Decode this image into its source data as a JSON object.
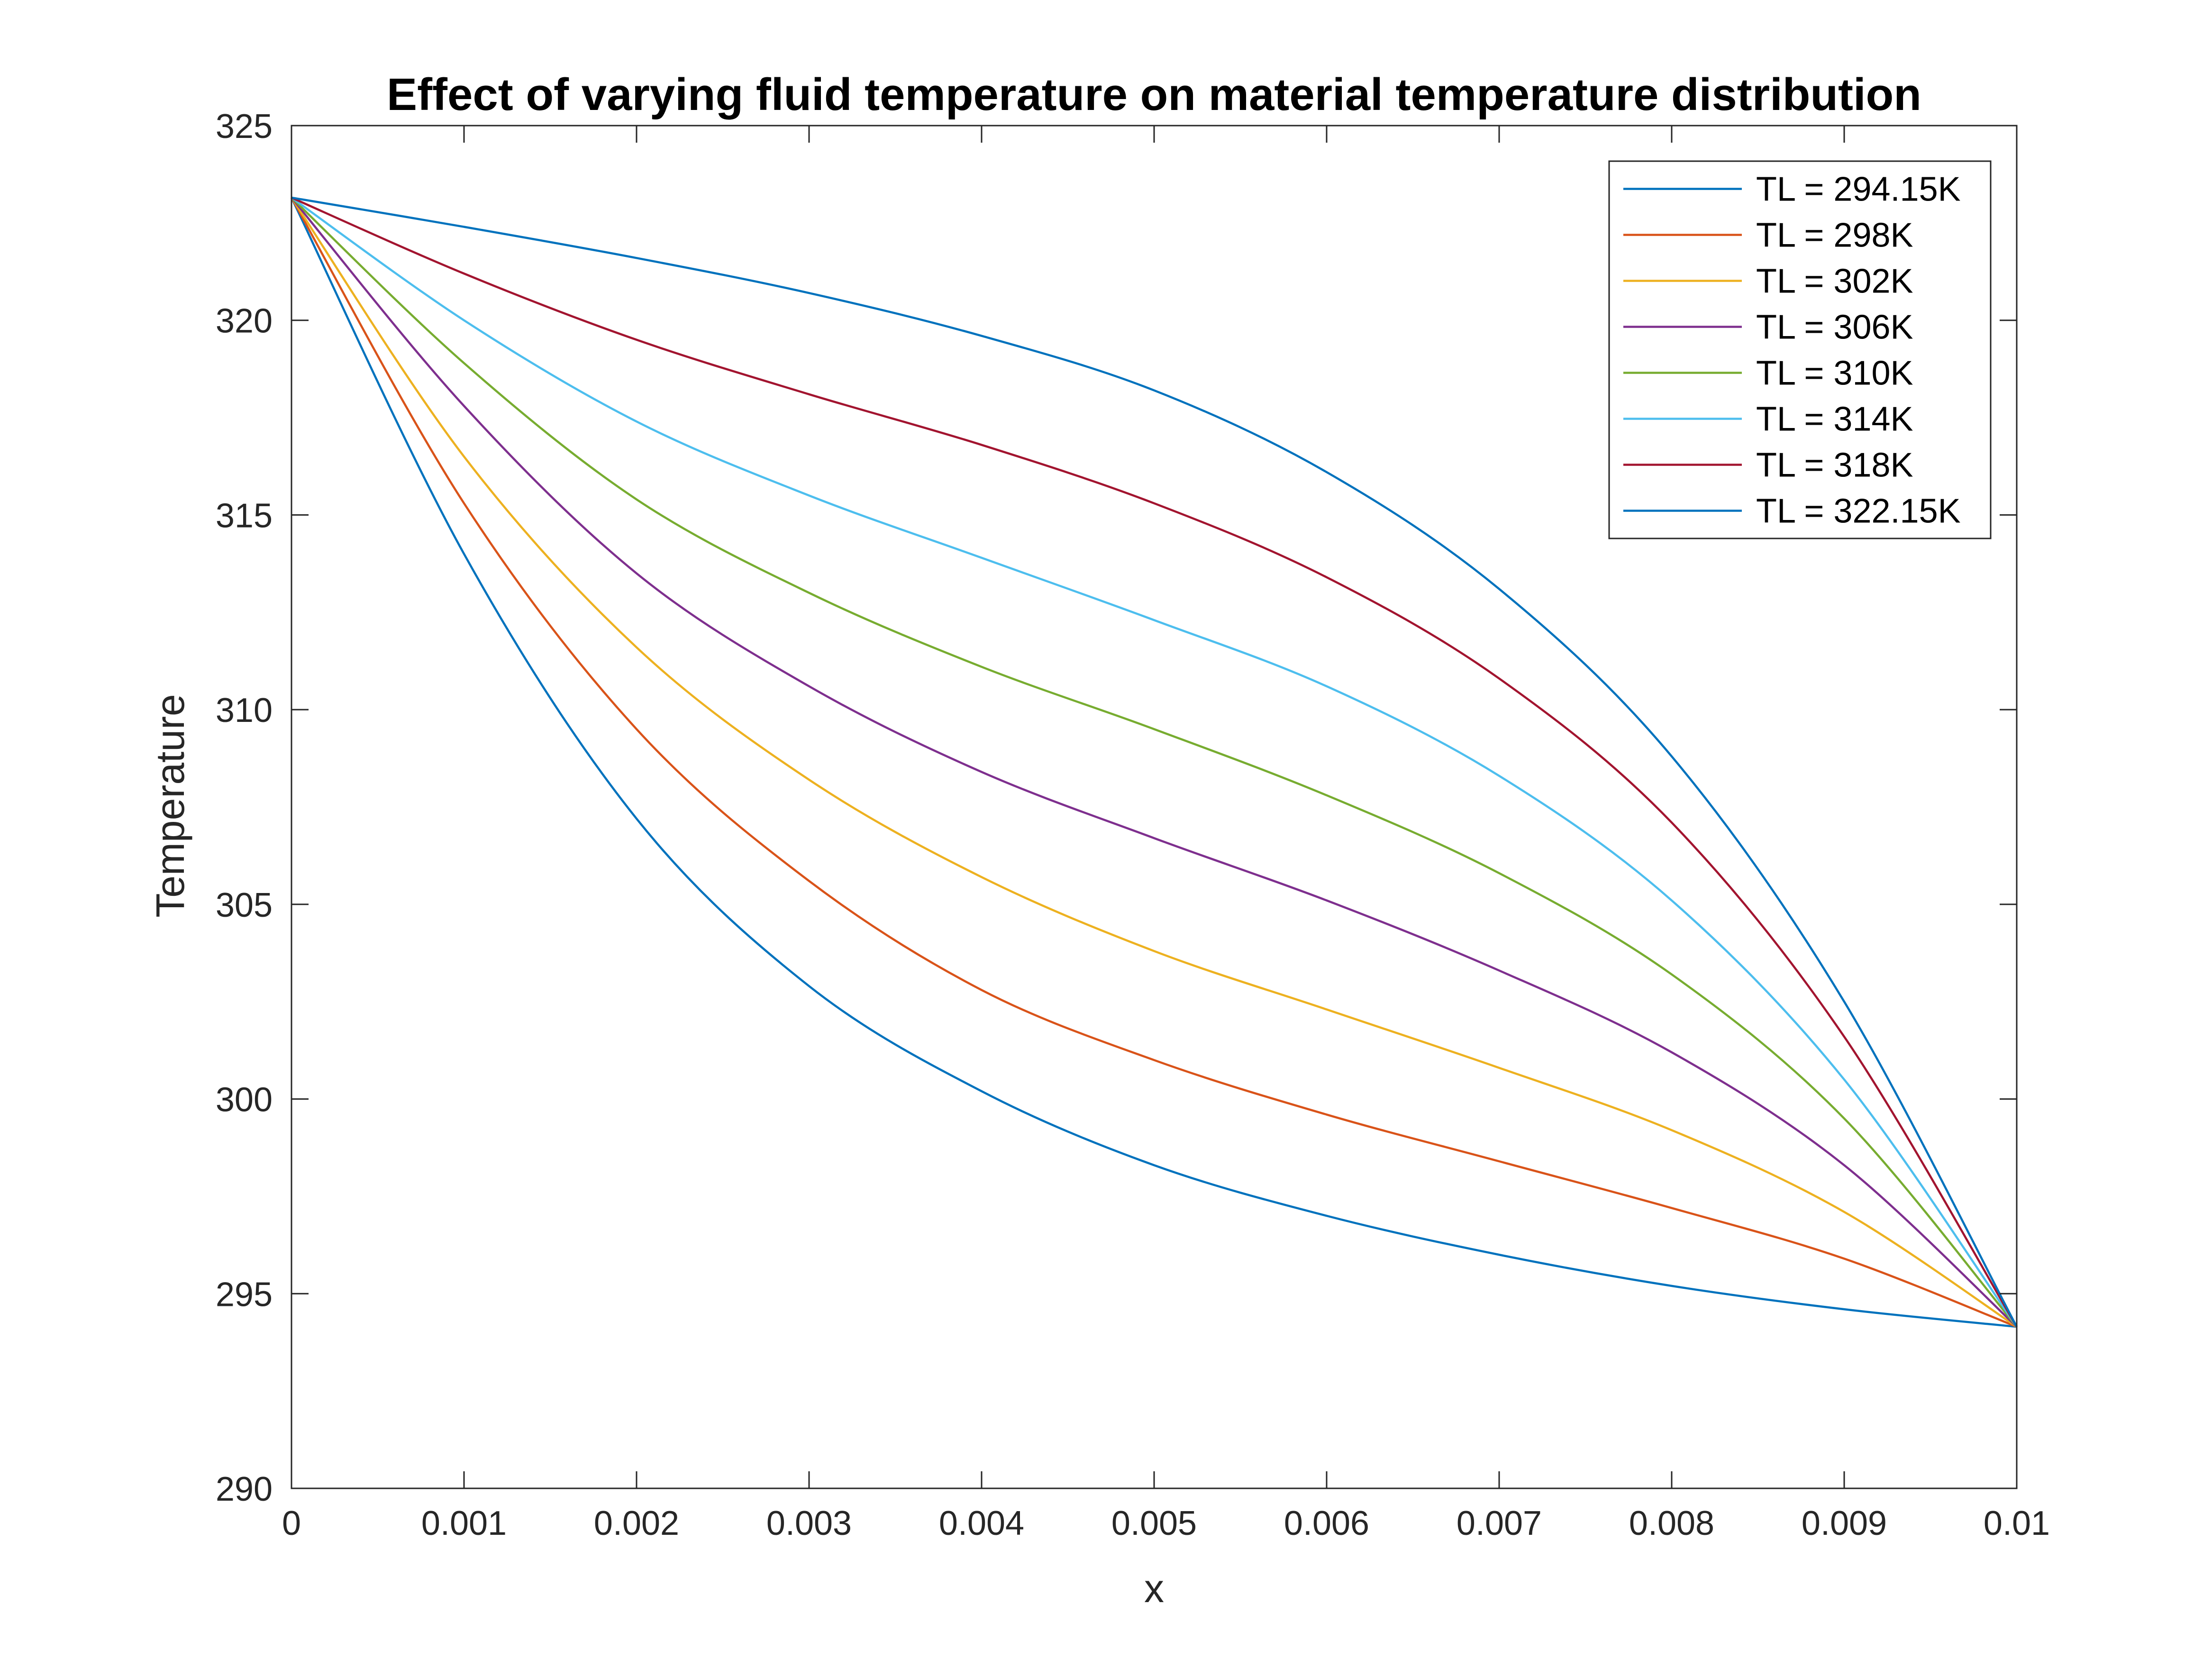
{
  "chart_data": {
    "type": "line",
    "title": "Effect of varying fluid temperature on material temperature distribution",
    "xlabel": "x",
    "ylabel": "Temperature",
    "xlim": [
      0,
      0.01
    ],
    "ylim": [
      290,
      325
    ],
    "xticks": [
      0,
      0.001,
      0.002,
      0.003,
      0.004,
      0.005,
      0.006,
      0.007,
      0.008,
      0.009,
      0.01
    ],
    "xtick_labels": [
      "0",
      "0.001",
      "0.002",
      "0.003",
      "0.004",
      "0.005",
      "0.006",
      "0.007",
      "0.008",
      "0.009",
      "0.01"
    ],
    "yticks": [
      290,
      295,
      300,
      305,
      310,
      315,
      320,
      325
    ],
    "ytick_labels": [
      "290",
      "295",
      "300",
      "305",
      "310",
      "315",
      "320",
      "325"
    ],
    "grid": false,
    "legend_position": "top-right",
    "x": [
      0,
      0.001,
      0.002,
      0.003,
      0.004,
      0.005,
      0.006,
      0.007,
      0.008,
      0.009,
      0.01
    ],
    "series": [
      {
        "name": "TL = 294.15K",
        "color": "#0072BD",
        "values": [
          323.15,
          314.0,
          307.2,
          302.9,
          300.2,
          298.3,
          297.0,
          296.0,
          295.2,
          294.6,
          294.15
        ]
      },
      {
        "name": "TL = 298K",
        "color": "#D95319",
        "values": [
          323.15,
          315.3,
          309.5,
          305.6,
          302.8,
          301.0,
          299.6,
          298.4,
          297.2,
          295.9,
          294.15
        ]
      },
      {
        "name": "TL = 302K",
        "color": "#EDB120",
        "values": [
          323.15,
          316.5,
          311.6,
          308.2,
          305.7,
          303.8,
          302.3,
          300.8,
          299.2,
          297.1,
          294.15
        ]
      },
      {
        "name": "TL = 306K",
        "color": "#7E2F8E",
        "values": [
          323.15,
          317.8,
          313.5,
          310.6,
          308.4,
          306.7,
          305.1,
          303.3,
          301.2,
          298.3,
          294.15
        ]
      },
      {
        "name": "TL = 310K",
        "color": "#77AC30",
        "values": [
          323.15,
          318.9,
          315.4,
          313.0,
          311.1,
          309.5,
          307.8,
          305.8,
          303.2,
          299.5,
          294.15
        ]
      },
      {
        "name": "TL = 314K",
        "color": "#4DBEEE",
        "values": [
          323.15,
          320.0,
          317.4,
          315.5,
          313.9,
          312.3,
          310.6,
          308.3,
          305.1,
          300.5,
          294.15
        ]
      },
      {
        "name": "TL = 318K",
        "color": "#A2142F",
        "values": [
          323.15,
          321.2,
          319.5,
          318.1,
          316.8,
          315.3,
          313.4,
          310.8,
          307.1,
          301.6,
          294.15
        ]
      },
      {
        "name": "TL = 322.15K",
        "color": "#0072BD",
        "values": [
          323.15,
          322.4,
          321.6,
          320.7,
          319.6,
          318.2,
          316.1,
          313.1,
          308.8,
          302.5,
          294.15
        ]
      }
    ]
  }
}
